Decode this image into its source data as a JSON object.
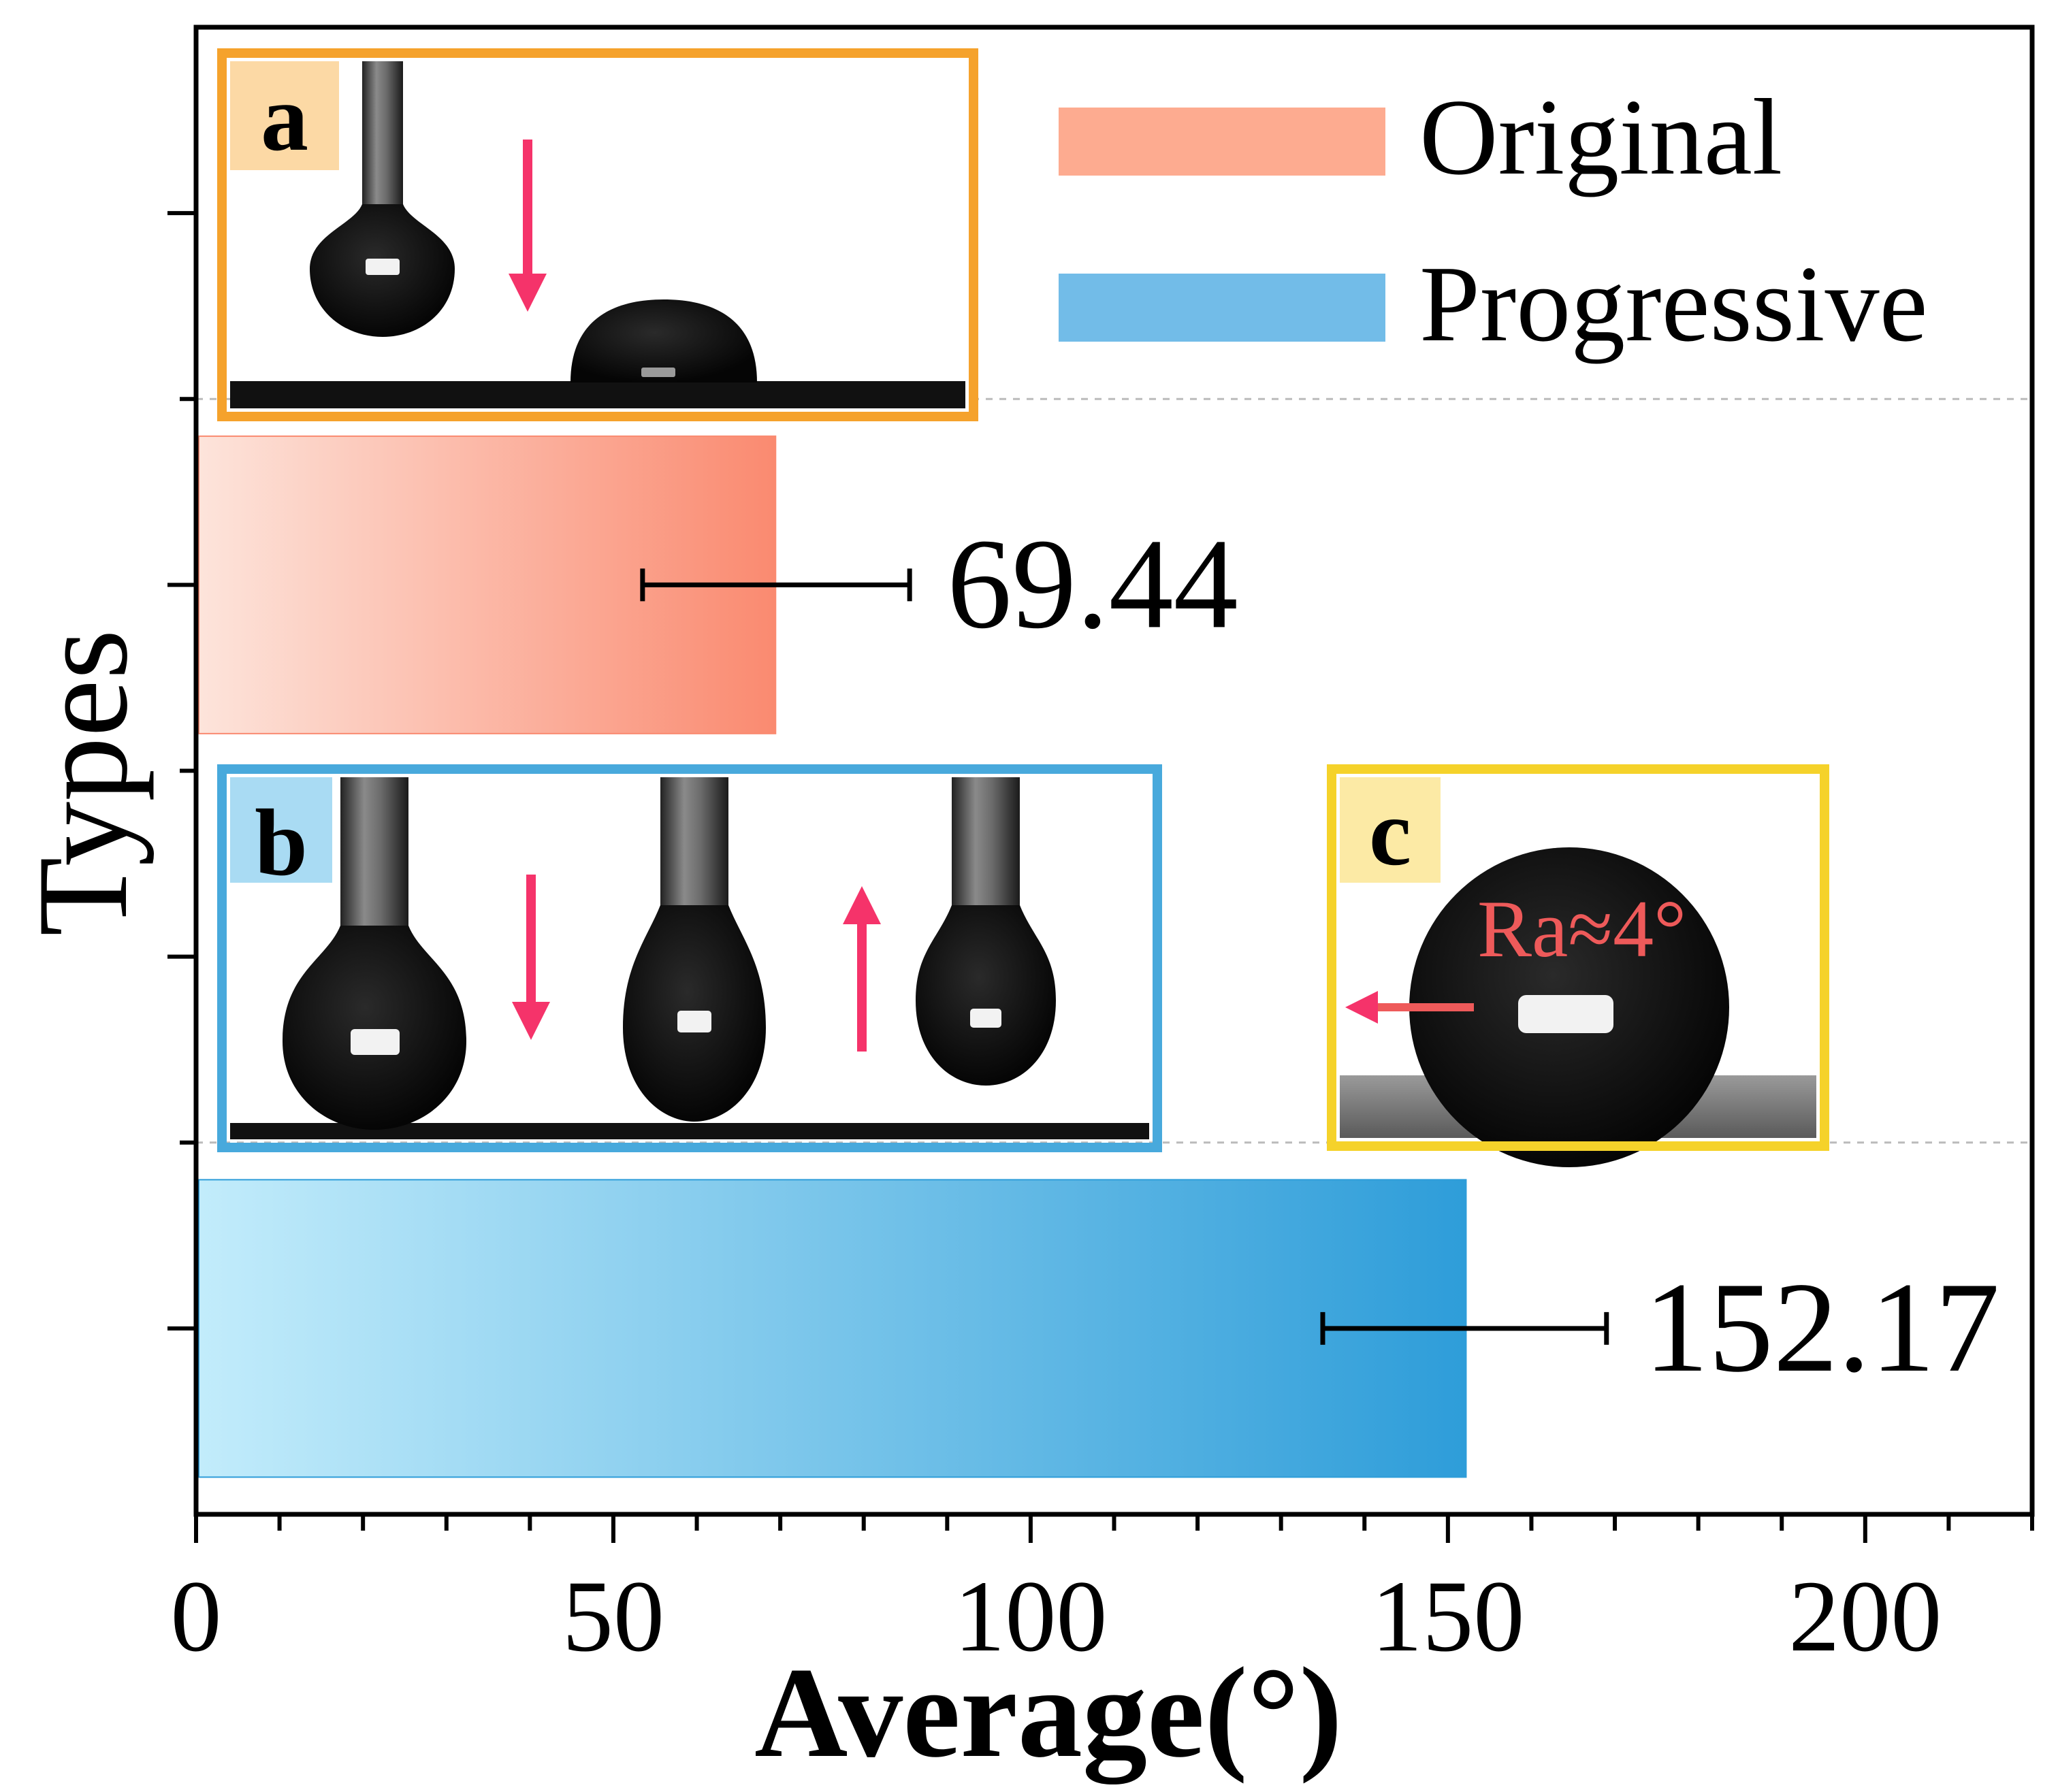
{
  "chart_data": {
    "type": "bar",
    "orientation": "horizontal",
    "categories": [
      "Original",
      "Progressive"
    ],
    "values": [
      69.44,
      152.17
    ],
    "error_bars": [
      {
        "low": 53.5,
        "high": 85.5
      },
      {
        "low": 135.0,
        "high": 169.0
      }
    ],
    "value_labels": [
      "69.44",
      "152.17"
    ],
    "xlabel": "Average(°)",
    "ylabel": "Types",
    "xlim": [
      0,
      220
    ],
    "x_ticks": [
      0,
      50,
      100,
      150,
      200
    ],
    "x_tick_labels": [
      "0",
      "50",
      "100",
      "150",
      "200"
    ],
    "legend": {
      "placement": "top-right",
      "entries": [
        {
          "label": "Original",
          "color": "#FDAB90"
        },
        {
          "label": "Progressive",
          "color": "#72BCE8"
        }
      ]
    }
  },
  "colors": {
    "original_light": "#FDE4DB",
    "original_dark": "#FA8A70",
    "progressive_light": "#C2ECFB",
    "progressive_dark": "#2E9DD9",
    "panel_a": "#F5A22C",
    "panel_b": "#48A9DC",
    "panel_c": "#F5D22A",
    "arrow": "#F5336A",
    "annotation": "#EE5A5A"
  },
  "insets": {
    "a": {
      "label": "a"
    },
    "b": {
      "label": "b"
    },
    "c": {
      "label": "c",
      "annotation": "Ra≈4°"
    }
  }
}
